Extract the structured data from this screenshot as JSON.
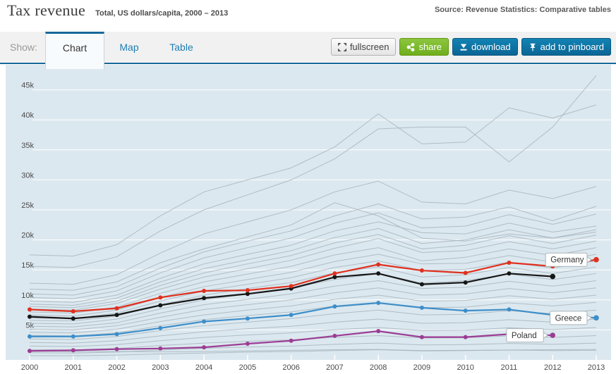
{
  "header": {
    "title": "Tax revenue",
    "subtitle": "Total, US dollars/capita, 2000 – 2013",
    "source": "Source: Revenue Statistics: Comparative tables"
  },
  "toolbar": {
    "show_label": "Show:",
    "tabs": [
      {
        "label": "Chart",
        "active": true
      },
      {
        "label": "Map",
        "active": false
      },
      {
        "label": "Table",
        "active": false
      }
    ],
    "buttons": [
      {
        "label": "fullscreen",
        "icon": "fullscreen-icon",
        "style": "gray"
      },
      {
        "label": "share",
        "icon": "share-icon",
        "style": "green"
      },
      {
        "label": "download",
        "icon": "download-icon",
        "style": "blue"
      },
      {
        "label": "add to pinboard",
        "icon": "pin-icon",
        "style": "blue"
      }
    ]
  },
  "colors": {
    "accent_blue": "#17689a",
    "button_green": "#6fae1d",
    "button_blue": "#0b6695",
    "plot_background": "#dce8ef",
    "grid_white": "#ffffff",
    "background_line_gray": "#a4b2bc",
    "germany_red": "#e0301e",
    "highlight_black": "#161616",
    "greece_blue": "#3d8ec9",
    "poland_purple": "#9b3d94"
  },
  "chart_data": {
    "type": "line",
    "title": "Tax revenue, Total, US dollars/capita, 2000 – 2013",
    "xlabel": "",
    "ylabel": "",
    "grid": true,
    "x": [
      2000,
      2001,
      2002,
      2003,
      2004,
      2005,
      2006,
      2007,
      2008,
      2009,
      2010,
      2011,
      2012,
      2013
    ],
    "ylim": [
      0,
      49000
    ],
    "ytick_interval": 5000,
    "ytick_labels": [
      "5k",
      "10k",
      "15k",
      "20k",
      "25k",
      "30k",
      "35k",
      "40k",
      "45k"
    ],
    "series": [
      {
        "name": "Germany",
        "color_key": "germany_red",
        "values": [
          8400,
          8100,
          8600,
          10400,
          11500,
          11600,
          12300,
          14400,
          15900,
          14900,
          14500,
          16200,
          15600,
          16700
        ]
      },
      {
        "name": "",
        "color_key": "highlight_black",
        "values": [
          7200,
          6900,
          7500,
          9100,
          10300,
          11000,
          11900,
          13800,
          14400,
          12600,
          12900,
          14400,
          13900,
          null
        ]
      },
      {
        "name": "Greece",
        "color_key": "greece_blue",
        "values": [
          3900,
          3900,
          4300,
          5300,
          6400,
          6900,
          7500,
          8900,
          9500,
          8700,
          8200,
          8400,
          7500,
          7000
        ]
      },
      {
        "name": "Poland",
        "color_key": "poland_purple",
        "values": [
          1500,
          1600,
          1800,
          1900,
          2100,
          2700,
          3200,
          4000,
          4800,
          3800,
          3800,
          4300,
          4100,
          null
        ]
      }
    ],
    "callouts": [
      {
        "label": "Germany",
        "series_index": 0
      },
      {
        "label": "Greece",
        "series_index": 2
      },
      {
        "label": "Poland",
        "series_index": 3
      }
    ],
    "background_series_approximate": true,
    "background_series": [
      [
        17500,
        17300,
        19200,
        24000,
        28000,
        30000,
        32000,
        35500,
        41000,
        36000,
        36300,
        42000,
        40300,
        42500
      ],
      [
        15600,
        15400,
        17200,
        21500,
        25000,
        27500,
        30000,
        33500,
        38500,
        38800,
        38800,
        33000,
        38800,
        47400
      ],
      [
        11800,
        11600,
        13000,
        16200,
        18500,
        20500,
        22500,
        26200,
        24000,
        20300,
        19800,
        21000,
        20300,
        21300
      ],
      [
        12800,
        12600,
        14200,
        17800,
        21000,
        23000,
        25000,
        28000,
        29800,
        26300,
        26000,
        28300,
        26900,
        28900
      ],
      [
        11000,
        10800,
        12200,
        15300,
        18000,
        19800,
        21500,
        24000,
        26000,
        23500,
        23800,
        25500,
        23200,
        25600
      ],
      [
        10400,
        10200,
        11500,
        14500,
        17000,
        18700,
        20300,
        22800,
        24500,
        22000,
        22300,
        24200,
        22600,
        24300
      ],
      [
        9800,
        9600,
        10800,
        13600,
        16000,
        17600,
        19100,
        21500,
        23000,
        21200,
        21000,
        22800,
        21300,
        22300
      ],
      [
        9300,
        9100,
        10300,
        13000,
        15200,
        16700,
        18200,
        20400,
        21900,
        19400,
        20000,
        21700,
        20300,
        21700
      ],
      [
        8900,
        8700,
        9800,
        12400,
        14500,
        16000,
        17400,
        19500,
        20900,
        18500,
        19100,
        20700,
        19400,
        20800
      ],
      [
        8500,
        8300,
        9400,
        11800,
        13800,
        15200,
        16600,
        18600,
        20200,
        17900,
        18200,
        19700,
        18500,
        19800
      ],
      [
        8000,
        7800,
        8800,
        11100,
        13000,
        14300,
        15600,
        17500,
        18700,
        16500,
        17100,
        18500,
        17400,
        18700
      ],
      [
        7500,
        7300,
        8300,
        10400,
        12200,
        13400,
        14600,
        16400,
        17600,
        16000,
        16100,
        17400,
        16300,
        17600
      ],
      [
        7000,
        6900,
        7800,
        9800,
        11500,
        12600,
        13700,
        15400,
        16500,
        14900,
        15100,
        16300,
        15300,
        16500
      ],
      [
        6600,
        6500,
        7300,
        9200,
        10800,
        11900,
        12900,
        14500,
        15500,
        13800,
        14200,
        15400,
        14400,
        15500
      ],
      [
        6100,
        6000,
        6800,
        8500,
        10000,
        11000,
        12000,
        13400,
        14400,
        12800,
        13200,
        14300,
        13400,
        14400
      ],
      [
        5600,
        5500,
        6200,
        7800,
        9200,
        10100,
        11000,
        12300,
        13200,
        11900,
        12100,
        13100,
        12300,
        13200
      ],
      [
        5100,
        5000,
        5700,
        7100,
        8400,
        9200,
        10000,
        11200,
        12000,
        10800,
        11000,
        11900,
        11200,
        12000
      ],
      [
        4600,
        4500,
        5100,
        6400,
        7500,
        8300,
        9000,
        10100,
        10800,
        9800,
        9900,
        10700,
        10100,
        10800
      ],
      [
        4100,
        4000,
        4500,
        5700,
        6700,
        7400,
        8000,
        9000,
        9600,
        8700,
        8800,
        9500,
        9000,
        9600
      ],
      [
        3500,
        3400,
        3900,
        4900,
        5700,
        6300,
        6900,
        7700,
        8300,
        7500,
        7600,
        8200,
        7700,
        8300
      ],
      [
        2900,
        2800,
        3200,
        4000,
        4700,
        5200,
        5600,
        6300,
        6800,
        6100,
        6200,
        6700,
        6300,
        6800
      ],
      [
        2300,
        2250,
        2550,
        3200,
        3750,
        4150,
        4500,
        5050,
        5400,
        4900,
        4950,
        5350,
        5050,
        5400
      ],
      [
        1700,
        1650,
        1900,
        2400,
        2800,
        3100,
        3350,
        3750,
        4050,
        3650,
        3700,
        4000,
        3750,
        4050
      ],
      [
        1200,
        1150,
        1300,
        1650,
        1950,
        2150,
        2300,
        2600,
        2800,
        2500,
        2550,
        2750,
        2600,
        2800
      ],
      [
        700,
        700,
        800,
        1000,
        1150,
        1300,
        1400,
        1550,
        1700,
        1500,
        1550,
        1650,
        1550,
        1600
      ],
      [
        1450,
        1400,
        1400,
        1350,
        1400,
        1500,
        1600,
        1700,
        1750,
        1550,
        1600,
        1650,
        1700,
        1750
      ]
    ]
  }
}
